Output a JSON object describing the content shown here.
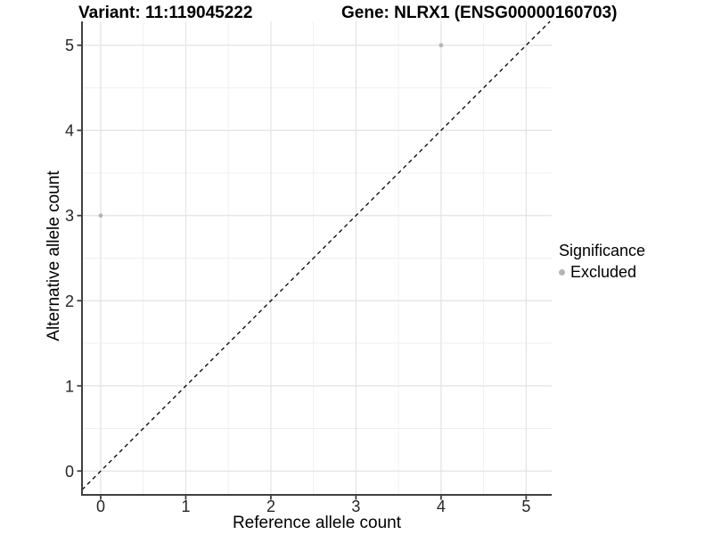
{
  "chart_data": {
    "type": "scatter",
    "title_left": "Variant: 11:119045222",
    "title_right": "Gene: NLRX1 (ENSG00000160703)",
    "xlabel": "Reference allele count",
    "ylabel": "Alternative allele count",
    "xticks": [
      0,
      1,
      2,
      3,
      4,
      5
    ],
    "yticks": [
      0,
      1,
      2,
      3,
      4,
      5
    ],
    "xlim": [
      -0.22,
      5.3
    ],
    "ylim": [
      -0.28,
      5.28
    ],
    "grid": {
      "major": true,
      "minor": true
    },
    "identity_line": {
      "equation": "y = x",
      "style": "dashed",
      "color": "#000000"
    },
    "series": [
      {
        "name": "Excluded",
        "color": "#b5b5b5",
        "points": [
          {
            "x": 0,
            "y": 3
          },
          {
            "x": 4,
            "y": 5
          }
        ]
      }
    ],
    "legend": {
      "title": "Significance",
      "position": "right",
      "entries": [
        {
          "label": "Excluded",
          "color": "#b5b5b5"
        }
      ]
    },
    "colors": {
      "axis_line": "#404040",
      "tick_text": "#262626",
      "grid_major": "#e3e3e3",
      "grid_minor": "#efefef",
      "background": "#ffffff"
    }
  }
}
